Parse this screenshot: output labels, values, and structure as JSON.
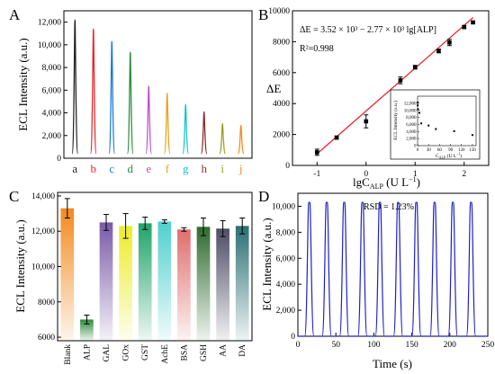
{
  "chart_data": [
    {
      "panel": "A",
      "type": "line",
      "ylabel": "ECL Intensity (a.u.)",
      "ylim": [
        0,
        13000
      ],
      "yticks": [
        "0",
        "2,000",
        "4,000",
        "6,000",
        "8,000",
        "10,000",
        "12,000"
      ],
      "categories": [
        "a",
        "b",
        "c",
        "d",
        "e",
        "f",
        "g",
        "h",
        "i",
        "j"
      ],
      "values": [
        12200,
        11400,
        10300,
        9350,
        6350,
        5750,
        4750,
        4100,
        3050,
        2900
      ],
      "colors": [
        "#222222",
        "#e8262b",
        "#1b79d8",
        "#2a8f3c",
        "#c24dc9",
        "#e8a21b",
        "#17c3c9",
        "#8a2b2b",
        "#9aa21b",
        "#f08a1c"
      ]
    },
    {
      "panel": "B",
      "type": "scatter",
      "xlabel_main": "lgC",
      "xlabel_sub": "ALP",
      "xlabel_unit": " (U L",
      "xlabel_unit_sup": "−1",
      "xlabel_close": ")",
      "ylabel": "ΔE",
      "xlim": [
        -1.5,
        2.5
      ],
      "ylim": [
        0,
        10000
      ],
      "xticks": [
        "-1",
        "0",
        "1",
        "2"
      ],
      "yticks": [
        "0",
        "2000",
        "4000",
        "6000",
        "8000",
        "10000"
      ],
      "equation": "ΔE = 3.52 × 10³ − 2.77 × 10³ lg[ALP]",
      "r2": "R²=0.998",
      "points": [
        {
          "x": -1,
          "y": 850,
          "err": 200
        },
        {
          "x": -0.6,
          "y": 1800,
          "err": 100
        },
        {
          "x": 0,
          "y": 2850,
          "err": 420
        },
        {
          "x": 0.7,
          "y": 5500,
          "err": 220
        },
        {
          "x": 1,
          "y": 6350,
          "err": 120
        },
        {
          "x": 1.48,
          "y": 7400,
          "err": 120
        },
        {
          "x": 1.7,
          "y": 7950,
          "err": 200
        },
        {
          "x": 2,
          "y": 8950,
          "err": 100
        },
        {
          "x": 2.18,
          "y": 9250,
          "err": 80
        }
      ],
      "fit": {
        "x": [
          -1,
          2.18
        ],
        "color": "#e8262b"
      },
      "inset": {
        "ylabel": "ECL Intensity (a.u.)",
        "xlabel": "C",
        "xlabel_sub": "ALP",
        "xlabel_unit": " (U L",
        "xlabel_unit_sup": "−1",
        "xlabel_close": ")",
        "xlim": [
          0,
          160
        ],
        "ylim": [
          0,
          14000
        ],
        "xticks": [
          "0",
          "30",
          "60",
          "90",
          "120",
          "150"
        ],
        "yticks": [
          "0",
          "2,000",
          "4,000",
          "6,000",
          "8,000",
          "10,000",
          "12,000"
        ],
        "points": [
          {
            "x": 0.1,
            "y": 12200
          },
          {
            "x": 0.25,
            "y": 11400
          },
          {
            "x": 1,
            "y": 10300
          },
          {
            "x": 5,
            "y": 9300
          },
          {
            "x": 10,
            "y": 6300
          },
          {
            "x": 30,
            "y": 5700
          },
          {
            "x": 50,
            "y": 4700
          },
          {
            "x": 100,
            "y": 4100
          },
          {
            "x": 150,
            "y": 3000
          }
        ]
      }
    },
    {
      "panel": "C",
      "type": "bar",
      "ylabel": "ECL Intensity (a.u.)",
      "ylim": [
        5800,
        14200
      ],
      "yticks": [
        "6000",
        "8000",
        "10,000",
        "12,000",
        "14,000"
      ],
      "categories": [
        "Blank",
        "ALP",
        "GAL",
        "GOx",
        "GST",
        "AchE",
        "BSA",
        "GSH",
        "AA",
        "DA"
      ],
      "values": [
        13300,
        7000,
        12500,
        12300,
        12450,
        12550,
        12100,
        12250,
        12150,
        12300
      ],
      "errors": [
        550,
        250,
        450,
        700,
        350,
        100,
        100,
        500,
        450,
        450
      ],
      "colors": [
        "#f28a1e",
        "#2d8a3c",
        "#7a5aa8",
        "#ecec2a",
        "#1fa36a",
        "#4fcfcf",
        "#e06e6e",
        "#2f6b2f",
        "#4d4d66",
        "#2b6f74"
      ]
    },
    {
      "panel": "D",
      "type": "line",
      "xlabel": "Time (s)",
      "ylabel": "ECL Intensity (a.u.)",
      "xlim": [
        0,
        250
      ],
      "ylim": [
        0,
        11000
      ],
      "xticks": [
        "0",
        "50",
        "100",
        "150",
        "200",
        "250"
      ],
      "yticks": [
        "0",
        "2,000",
        "4,000",
        "6,000",
        "8,000",
        "10,000"
      ],
      "annotation": "RSD = 1.23%",
      "peak_times": [
        15,
        38,
        61,
        85,
        108,
        132,
        156,
        180,
        204,
        228
      ],
      "peak_values": [
        10300,
        10300,
        10300,
        10300,
        10300,
        10300,
        10300,
        10300,
        10300,
        10300
      ],
      "baseline": 0,
      "color": "#1f1fcc"
    }
  ]
}
